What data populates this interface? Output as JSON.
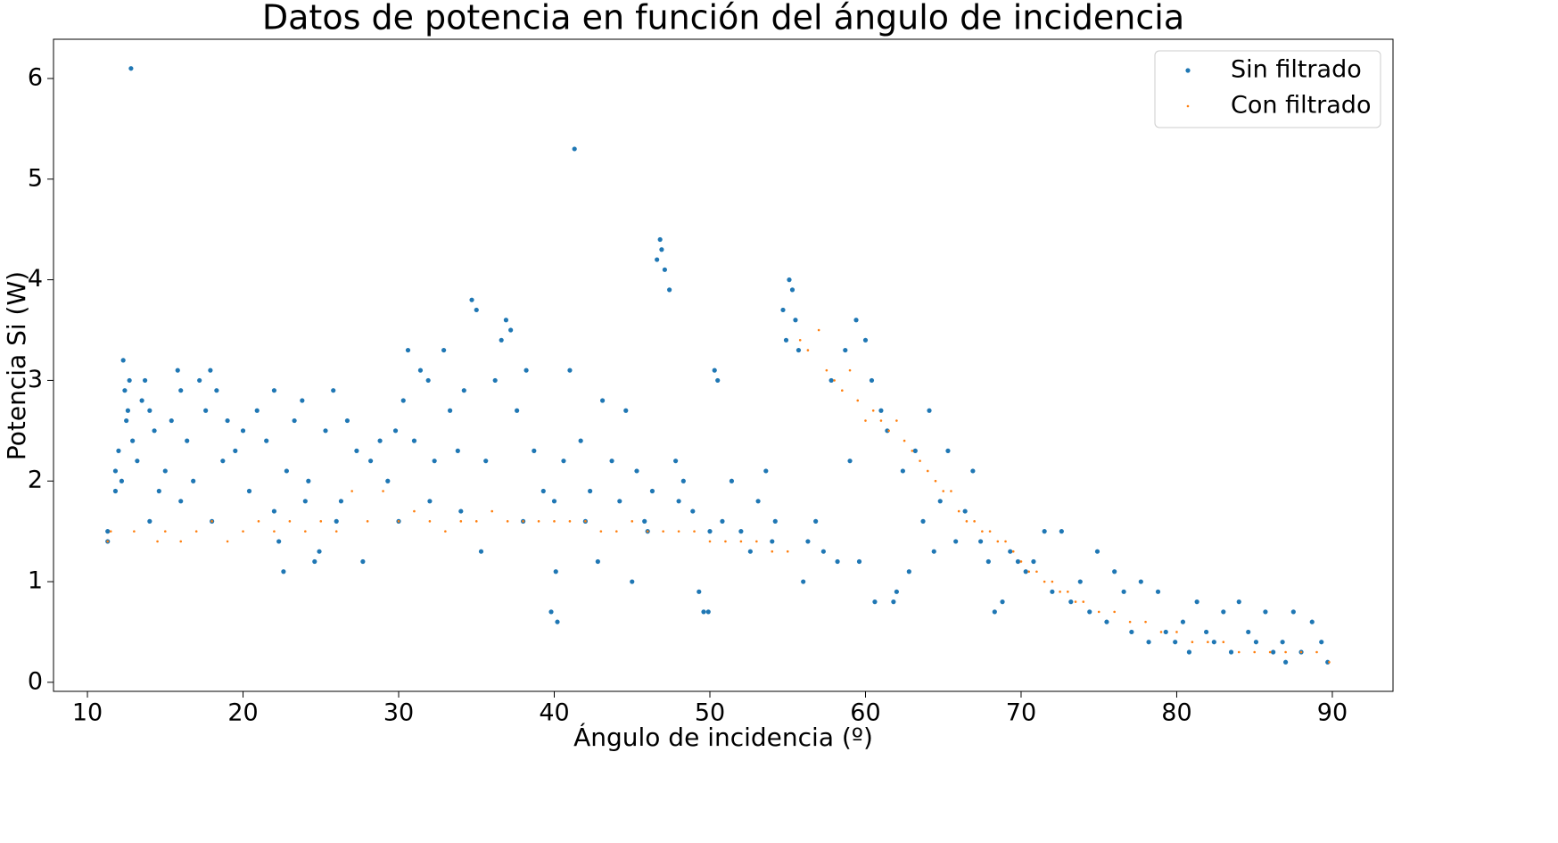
{
  "chart_data": {
    "type": "scatter",
    "title": "Datos de potencia en función del ángulo de incidencia",
    "x_label": "Ángulo de incidencia (º)",
    "y_label": "Potencia Si (W)",
    "xlim": [
      7.82,
      93.9
    ],
    "ylim": [
      -0.09,
      6.39
    ],
    "xticks": [
      10,
      20,
      30,
      40,
      50,
      60,
      70,
      80,
      90
    ],
    "yticks": [
      0,
      1,
      2,
      3,
      4,
      5,
      6
    ],
    "grid": false,
    "legend": "upper right",
    "series": [
      {
        "name": "Sin filtrado",
        "color": "#1f77b4",
        "x": [
          11.3,
          11.3,
          11.8,
          11.8,
          12.0,
          12.2,
          12.3,
          12.4,
          12.5,
          12.6,
          12.7,
          12.8,
          12.9,
          13.2,
          13.5,
          13.7,
          14.0,
          14.3,
          14.6,
          15.0,
          15.4,
          15.8,
          16.0,
          16.4,
          16.8,
          17.2,
          17.6,
          17.9,
          18.3,
          18.7,
          19.0,
          19.5,
          20.0,
          20.4,
          20.9,
          21.5,
          22.0,
          22.3,
          22.6,
          22.8,
          23.3,
          23.8,
          24.2,
          24.6,
          24.9,
          25.3,
          25.8,
          26.3,
          26.7,
          27.3,
          27.7,
          28.2,
          28.8,
          29.3,
          29.8,
          30.3,
          30.6,
          31.0,
          31.4,
          31.9,
          32.3,
          32.9,
          33.3,
          33.8,
          34.2,
          34.7,
          35.0,
          35.3,
          35.6,
          36.2,
          36.6,
          36.9,
          37.2,
          37.6,
          38.2,
          38.7,
          39.3,
          39.8,
          40.1,
          40.2,
          40.6,
          41.0,
          41.3,
          41.7,
          42.3,
          42.8,
          43.1,
          43.7,
          44.2,
          44.6,
          45.0,
          45.3,
          45.8,
          46.3,
          46.6,
          46.8,
          46.9,
          47.1,
          47.4,
          47.8,
          48.3,
          48.9,
          49.3,
          49.6,
          49.9,
          50.3,
          50.5,
          50.8,
          51.4,
          52.0,
          52.6,
          53.1,
          53.6,
          54.2,
          54.7,
          54.9,
          55.1,
          55.3,
          55.5,
          55.7,
          56.0,
          56.3,
          56.8,
          57.3,
          57.8,
          58.2,
          58.7,
          59.0,
          59.4,
          59.6,
          60.0,
          60.4,
          60.6,
          61.0,
          61.4,
          61.8,
          62.0,
          62.4,
          62.8,
          63.2,
          63.7,
          64.1,
          64.4,
          64.8,
          65.3,
          65.8,
          66.4,
          66.9,
          67.4,
          67.9,
          68.3,
          68.8,
          69.3,
          69.8,
          70.3,
          70.8,
          71.5,
          72.0,
          72.6,
          73.2,
          73.8,
          74.4,
          74.9,
          75.5,
          76.0,
          76.6,
          77.1,
          77.7,
          78.2,
          78.8,
          79.3,
          79.9,
          80.4,
          80.8,
          81.3,
          81.9,
          82.4,
          83.0,
          83.5,
          84.0,
          84.6,
          85.1,
          85.7,
          86.2,
          86.8,
          87.0,
          87.5,
          88.0,
          88.7,
          89.3,
          89.7,
          14,
          18,
          22,
          26,
          30,
          34,
          38,
          42,
          46,
          50,
          54,
          16,
          24,
          32,
          40,
          48
        ],
        "values": [
          1.4,
          1.5,
          1.9,
          2.1,
          2.3,
          2.0,
          3.2,
          2.9,
          2.6,
          2.7,
          3.0,
          6.1,
          2.4,
          2.2,
          2.8,
          3.0,
          2.7,
          2.5,
          1.9,
          2.1,
          2.6,
          3.1,
          2.9,
          2.4,
          2.0,
          3.0,
          2.7,
          3.1,
          2.9,
          2.2,
          2.6,
          2.3,
          2.5,
          1.9,
          2.7,
          2.4,
          2.9,
          1.4,
          1.1,
          2.1,
          2.6,
          2.8,
          2.0,
          1.2,
          1.3,
          2.5,
          2.9,
          1.8,
          2.6,
          2.3,
          1.2,
          2.2,
          2.4,
          2.0,
          2.5,
          2.8,
          3.3,
          2.4,
          3.1,
          3.0,
          2.2,
          3.3,
          2.7,
          2.3,
          2.9,
          3.8,
          3.7,
          1.3,
          2.2,
          3.0,
          3.4,
          3.6,
          3.5,
          2.7,
          3.1,
          2.3,
          1.9,
          0.7,
          1.1,
          0.6,
          2.2,
          3.1,
          5.3,
          2.4,
          1.9,
          1.2,
          2.8,
          2.2,
          1.8,
          2.7,
          1.0,
          2.1,
          1.6,
          1.9,
          4.2,
          4.4,
          4.3,
          4.1,
          3.9,
          2.2,
          2.0,
          1.7,
          0.9,
          0.7,
          0.7,
          3.1,
          3.0,
          1.6,
          2.0,
          1.5,
          1.3,
          1.8,
          2.1,
          1.6,
          3.7,
          3.4,
          4.0,
          3.9,
          3.6,
          3.3,
          1.0,
          1.4,
          1.6,
          1.3,
          3.0,
          1.2,
          3.3,
          2.2,
          3.6,
          1.2,
          3.4,
          3.0,
          0.8,
          2.7,
          2.5,
          0.8,
          0.9,
          2.1,
          1.1,
          2.3,
          1.6,
          2.7,
          1.3,
          1.8,
          2.3,
          1.4,
          1.7,
          2.1,
          1.4,
          1.2,
          0.7,
          0.8,
          1.3,
          1.2,
          1.1,
          1.2,
          1.5,
          0.9,
          1.5,
          0.8,
          1.0,
          0.7,
          1.3,
          0.6,
          1.1,
          0.9,
          0.5,
          1.0,
          0.4,
          0.9,
          0.5,
          0.4,
          0.6,
          0.3,
          0.8,
          0.5,
          0.4,
          0.7,
          0.3,
          0.8,
          0.5,
          0.4,
          0.7,
          0.3,
          0.4,
          0.2,
          0.7,
          0.3,
          0.6,
          0.4,
          0.2,
          1.6,
          1.6,
          1.7,
          1.6,
          1.6,
          1.7,
          1.6,
          1.6,
          1.5,
          1.5,
          1.4,
          1.8,
          1.8,
          1.8,
          1.8,
          1.8
        ]
      },
      {
        "name": "Con filtrado",
        "color": "#ff7f0e",
        "x": [
          11.3,
          11.5,
          13,
          14.5,
          15,
          16,
          17,
          18,
          19,
          20,
          21,
          22,
          23,
          24,
          25,
          26,
          27,
          28,
          29,
          30,
          31,
          32,
          33,
          34,
          35,
          36,
          37,
          38,
          39,
          40,
          41,
          42,
          43,
          44,
          45,
          46,
          47,
          48,
          49,
          50,
          51,
          52,
          53,
          54,
          55,
          55.8,
          56.3,
          57,
          57.5,
          58,
          58.5,
          59,
          59.5,
          60,
          60.5,
          61,
          61.5,
          62,
          62.5,
          63,
          63.5,
          64,
          64.5,
          65,
          65.5,
          66,
          66.5,
          67,
          67.5,
          68,
          68.5,
          69,
          69.5,
          70,
          70.5,
          71,
          71.5,
          72,
          72.5,
          73,
          73.5,
          74,
          75,
          76,
          77,
          78,
          79,
          80,
          81,
          82,
          83,
          84,
          85,
          86,
          87,
          88,
          89,
          89.8
        ],
        "values": [
          1.4,
          1.5,
          1.5,
          1.4,
          1.5,
          1.4,
          1.5,
          1.6,
          1.4,
          1.5,
          1.6,
          1.5,
          1.6,
          1.5,
          1.6,
          1.5,
          1.9,
          1.6,
          1.9,
          1.6,
          1.7,
          1.6,
          1.5,
          1.6,
          1.6,
          1.7,
          1.6,
          1.6,
          1.6,
          1.6,
          1.6,
          1.6,
          1.5,
          1.5,
          1.6,
          1.5,
          1.5,
          1.5,
          1.5,
          1.4,
          1.4,
          1.4,
          1.4,
          1.3,
          1.3,
          3.4,
          3.3,
          3.5,
          3.1,
          3.0,
          2.9,
          3.1,
          2.8,
          2.6,
          2.7,
          2.6,
          2.5,
          2.6,
          2.4,
          2.3,
          2.2,
          2.1,
          2.0,
          1.9,
          1.9,
          1.7,
          1.6,
          1.6,
          1.5,
          1.5,
          1.4,
          1.4,
          1.3,
          1.2,
          1.1,
          1.1,
          1.0,
          1.0,
          0.9,
          0.9,
          0.8,
          0.8,
          0.7,
          0.7,
          0.6,
          0.6,
          0.5,
          0.5,
          0.4,
          0.4,
          0.4,
          0.3,
          0.3,
          0.3,
          0.3,
          0.3,
          0.3,
          0.2
        ]
      }
    ]
  }
}
